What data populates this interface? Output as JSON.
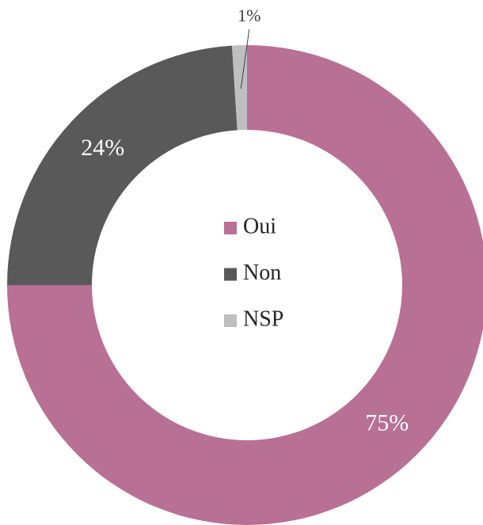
{
  "chart_data": {
    "type": "donut",
    "categories": [
      "Oui",
      "Non",
      "NSP"
    ],
    "values": [
      75,
      24,
      1
    ],
    "value_labels": [
      "75%",
      "24%",
      "1%"
    ],
    "colors": [
      "#b87095",
      "#595959",
      "#bfbfbf"
    ],
    "legend": "center"
  }
}
